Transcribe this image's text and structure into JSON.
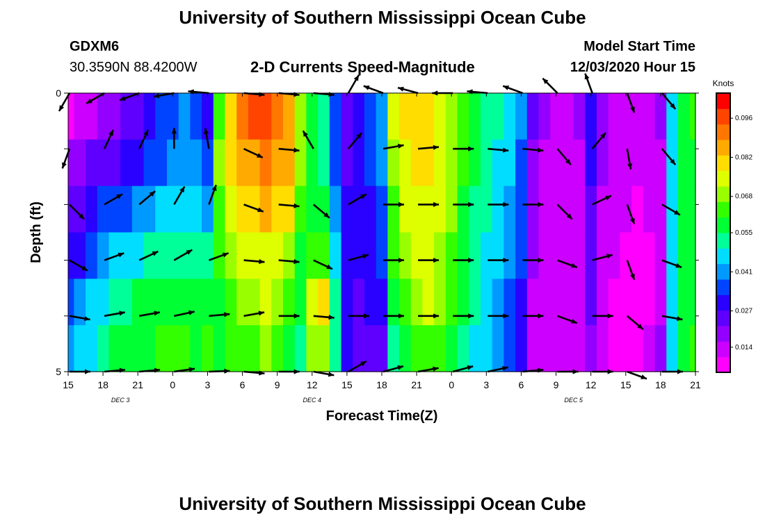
{
  "header": {
    "title": "University of Southern Mississippi Ocean Cube",
    "station_id": "GDXM6",
    "station_coords": "30.3590N 88.4200W",
    "plot_title": "2-D Currents Speed-Magnitude",
    "model_start_label": "Model Start Time",
    "model_start_value": "12/03/2020 Hour 15"
  },
  "footer": {
    "title": "University of Southern Mississippi Ocean Cube"
  },
  "colors": {
    "scale": [
      "#ff00ff",
      "#cc00ff",
      "#9400ff",
      "#5f00ff",
      "#2a00ff",
      "#0044ff",
      "#0099ff",
      "#00ddff",
      "#00ff99",
      "#00ff33",
      "#33ff00",
      "#99ff00",
      "#ddff00",
      "#ffdd00",
      "#ffaa00",
      "#ff7700",
      "#ff4400",
      "#ff0000"
    ]
  },
  "chart_data": {
    "type": "heatmap",
    "title": "2-D Currents Speed-Magnitude",
    "xlabel": "Forecast Time(Z)",
    "ylabel": "Depth (ft)",
    "x_tick_labels": [
      "15",
      "18",
      "21",
      "0",
      "3",
      "6",
      "9",
      "12",
      "15",
      "18",
      "21",
      "0",
      "3",
      "6",
      "9",
      "12",
      "15",
      "18",
      "21"
    ],
    "x_tick_hours": [
      0,
      3,
      6,
      9,
      12,
      15,
      18,
      21,
      24,
      27,
      30,
      33,
      36,
      39,
      42,
      45,
      48,
      51,
      54
    ],
    "date_labels": [
      {
        "label": "DEC 3",
        "hour": 4.5
      },
      {
        "label": "DEC 4",
        "hour": 21
      },
      {
        "label": "DEC 5",
        "hour": 43.5
      }
    ],
    "y_tick_labels": [
      "0",
      "5"
    ],
    "ylim": [
      0,
      5
    ],
    "xlim": [
      0,
      54
    ],
    "colorbar": {
      "title": "Knots",
      "tick_labels": [
        "0.096",
        "0.082",
        "0.068",
        "0.055",
        "0.041",
        "0.027",
        "0.014"
      ],
      "tick_values": [
        0.096,
        0.082,
        0.068,
        0.055,
        0.041,
        0.027,
        0.014
      ],
      "range": [
        0.005,
        0.105
      ]
    },
    "speed_columns": {
      "hours": [
        0,
        1,
        2,
        3,
        4,
        5,
        6,
        7,
        8,
        9,
        10,
        11,
        12,
        13,
        14,
        15,
        16,
        17,
        18,
        19,
        20,
        21,
        22,
        23,
        24,
        25,
        26,
        27,
        28,
        29,
        30,
        31,
        32,
        33,
        34,
        35,
        36,
        37,
        38,
        39,
        40,
        41,
        42,
        43,
        44,
        45,
        46,
        47,
        48,
        49,
        50,
        51,
        52,
        53,
        54
      ],
      "profile": [
        [
          0.01,
          0.018,
          0.024,
          0.03,
          0.038,
          0.042
        ],
        [
          0.012,
          0.02,
          0.026,
          0.032,
          0.04,
          0.044
        ],
        [
          0.016,
          0.022,
          0.03,
          0.036,
          0.044,
          0.048
        ],
        [
          0.018,
          0.024,
          0.034,
          0.04,
          0.048,
          0.052
        ],
        [
          0.02,
          0.026,
          0.036,
          0.044,
          0.052,
          0.056
        ],
        [
          0.022,
          0.028,
          0.038,
          0.046,
          0.054,
          0.058
        ],
        [
          0.026,
          0.03,
          0.04,
          0.048,
          0.056,
          0.06
        ],
        [
          0.03,
          0.034,
          0.042,
          0.05,
          0.058,
          0.06
        ],
        [
          0.034,
          0.038,
          0.044,
          0.05,
          0.058,
          0.062
        ],
        [
          0.038,
          0.04,
          0.046,
          0.052,
          0.06,
          0.064
        ],
        [
          0.04,
          0.042,
          0.046,
          0.052,
          0.06,
          0.062
        ],
        [
          0.036,
          0.04,
          0.044,
          0.05,
          0.056,
          0.06
        ],
        [
          0.03,
          0.036,
          0.042,
          0.052,
          0.058,
          0.062
        ],
        [
          0.066,
          0.068,
          0.066,
          0.062,
          0.06,
          0.058
        ],
        [
          0.082,
          0.08,
          0.076,
          0.07,
          0.066,
          0.062
        ],
        [
          0.09,
          0.086,
          0.08,
          0.072,
          0.068,
          0.064
        ],
        [
          0.096,
          0.088,
          0.082,
          0.074,
          0.07,
          0.066
        ],
        [
          0.098,
          0.09,
          0.084,
          0.076,
          0.072,
          0.068
        ],
        [
          0.092,
          0.088,
          0.082,
          0.074,
          0.07,
          0.066
        ],
        [
          0.086,
          0.084,
          0.078,
          0.07,
          0.064,
          0.06
        ],
        [
          0.07,
          0.068,
          0.064,
          0.06,
          0.056,
          0.052
        ],
        [
          0.058,
          0.058,
          0.06,
          0.066,
          0.072,
          0.068
        ],
        [
          0.05,
          0.052,
          0.056,
          0.064,
          0.078,
          0.07
        ],
        [
          0.034,
          0.036,
          0.04,
          0.046,
          0.052,
          0.05
        ],
        [
          0.024,
          0.026,
          0.028,
          0.03,
          0.032,
          0.032
        ],
        [
          0.03,
          0.032,
          0.03,
          0.028,
          0.026,
          0.024
        ],
        [
          0.036,
          0.034,
          0.032,
          0.03,
          0.028,
          0.024
        ],
        [
          0.042,
          0.04,
          0.038,
          0.034,
          0.03,
          0.026
        ],
        [
          0.072,
          0.07,
          0.066,
          0.062,
          0.058,
          0.05
        ],
        [
          0.078,
          0.076,
          0.074,
          0.07,
          0.066,
          0.06
        ],
        [
          0.08,
          0.078,
          0.076,
          0.074,
          0.07,
          0.064
        ],
        [
          0.078,
          0.078,
          0.076,
          0.074,
          0.072,
          0.066
        ],
        [
          0.074,
          0.074,
          0.072,
          0.07,
          0.068,
          0.064
        ],
        [
          0.07,
          0.07,
          0.068,
          0.066,
          0.064,
          0.06
        ],
        [
          0.064,
          0.062,
          0.06,
          0.058,
          0.056,
          0.054
        ],
        [
          0.058,
          0.056,
          0.054,
          0.052,
          0.05,
          0.048
        ],
        [
          0.054,
          0.052,
          0.05,
          0.048,
          0.046,
          0.044
        ],
        [
          0.05,
          0.048,
          0.046,
          0.044,
          0.042,
          0.04
        ],
        [
          0.046,
          0.044,
          0.042,
          0.04,
          0.038,
          0.036
        ],
        [
          0.04,
          0.038,
          0.036,
          0.034,
          0.032,
          0.03
        ],
        [
          0.022,
          0.02,
          0.018,
          0.018,
          0.016,
          0.016
        ],
        [
          0.018,
          0.016,
          0.016,
          0.014,
          0.014,
          0.014
        ],
        [
          0.016,
          0.016,
          0.014,
          0.014,
          0.014,
          0.012
        ],
        [
          0.016,
          0.014,
          0.014,
          0.012,
          0.012,
          0.012
        ],
        [
          0.018,
          0.016,
          0.016,
          0.014,
          0.014,
          0.014
        ],
        [
          0.03,
          0.028,
          0.026,
          0.024,
          0.022,
          0.02
        ],
        [
          0.02,
          0.018,
          0.016,
          0.014,
          0.014,
          0.012
        ],
        [
          0.016,
          0.014,
          0.012,
          0.012,
          0.01,
          0.01
        ],
        [
          0.014,
          0.012,
          0.012,
          0.01,
          0.01,
          0.01
        ],
        [
          0.012,
          0.012,
          0.01,
          0.01,
          0.01,
          0.01
        ],
        [
          0.014,
          0.012,
          0.012,
          0.01,
          0.01,
          0.012
        ],
        [
          0.018,
          0.016,
          0.016,
          0.016,
          0.016,
          0.018
        ],
        [
          0.048,
          0.046,
          0.044,
          0.044,
          0.046,
          0.048
        ],
        [
          0.058,
          0.056,
          0.056,
          0.056,
          0.058,
          0.06
        ],
        [
          0.062,
          0.06,
          0.06,
          0.06,
          0.06,
          0.062
        ]
      ]
    },
    "vectors": {
      "depth_rows": [
        0,
        1,
        2,
        3,
        4,
        5
      ],
      "hours": [
        0,
        3,
        6,
        9,
        12,
        15,
        18,
        21,
        24,
        27,
        30,
        33,
        36,
        39,
        42,
        45,
        48,
        51
      ],
      "direction_deg": [
        [
          210,
          240,
          250,
          260,
          275,
          95,
          95,
          95,
          30,
          290,
          285,
          270,
          275,
          290,
          315,
          340,
          160,
          140
        ],
        [
          200,
          25,
          25,
          0,
          350,
          115,
          95,
          330,
          40,
          80,
          85,
          90,
          95,
          95,
          140,
          40,
          170,
          140
        ],
        [
          135,
          60,
          50,
          30,
          20,
          110,
          95,
          130,
          60,
          90,
          90,
          90,
          90,
          90,
          135,
          65,
          160,
          120
        ],
        [
          120,
          70,
          65,
          60,
          70,
          95,
          95,
          115,
          75,
          90,
          90,
          90,
          90,
          90,
          110,
          75,
          160,
          110
        ],
        [
          100,
          80,
          80,
          78,
          85,
          80,
          90,
          95,
          90,
          90,
          90,
          90,
          90,
          90,
          110,
          90,
          130,
          100
        ],
        [
          90,
          85,
          85,
          82,
          88,
          95,
          90,
          100,
          60,
          75,
          80,
          75,
          78,
          85,
          90,
          90,
          110,
          90
        ]
      ]
    }
  }
}
